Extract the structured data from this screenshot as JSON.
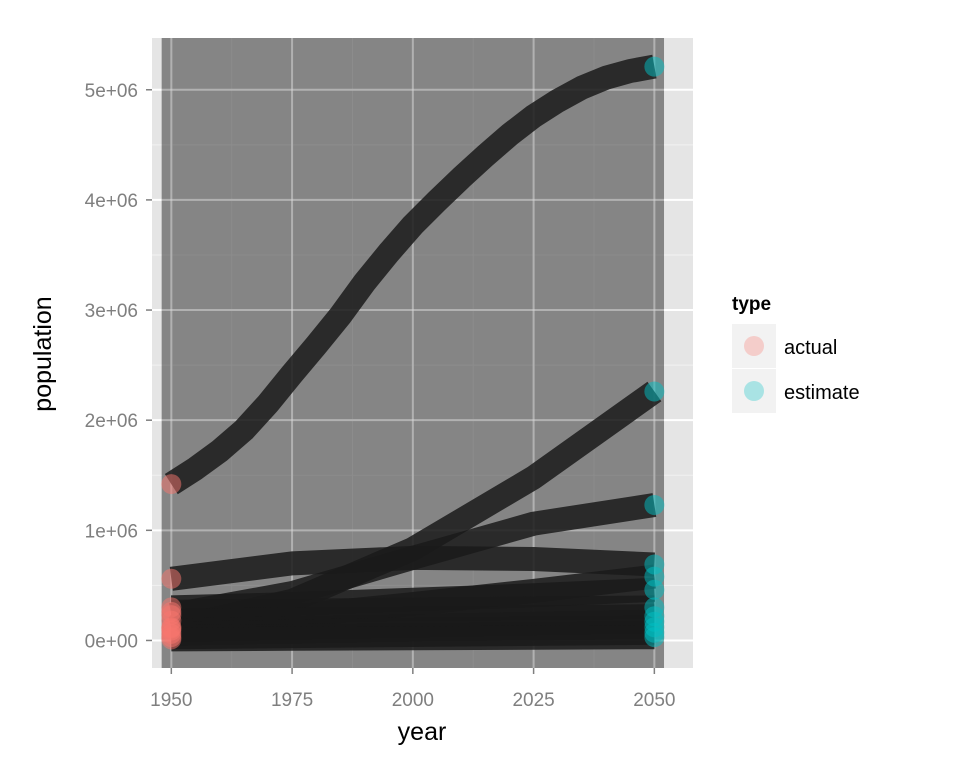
{
  "chart_data": {
    "type": "line",
    "xlabel": "year",
    "ylabel": "population",
    "xlim": [
      1946,
      2058
    ],
    "ylim": [
      -250000,
      5470000
    ],
    "x_ticks": [
      {
        "value": 1950,
        "label": "1950"
      },
      {
        "value": 1975,
        "label": "1975"
      },
      {
        "value": 2000,
        "label": "2000"
      },
      {
        "value": 2025,
        "label": "2025"
      },
      {
        "value": 2050,
        "label": "2050"
      }
    ],
    "y_ticks": [
      {
        "value": 0,
        "label": "0e+00"
      },
      {
        "value": 1000000,
        "label": "1e+06"
      },
      {
        "value": 2000000,
        "label": "2e+06"
      },
      {
        "value": 3000000,
        "label": "3e+06"
      },
      {
        "value": 4000000,
        "label": "4e+06"
      },
      {
        "value": 5000000,
        "label": "5e+06"
      }
    ],
    "shaded_region": {
      "x": [
        1948,
        2052
      ]
    },
    "legend": {
      "title": "type",
      "placement": "right",
      "items": [
        {
          "label": "actual",
          "color": "#F8766D"
        },
        {
          "label": "estimate",
          "color": "#00BFC4"
        }
      ]
    },
    "series": [
      {
        "x": [
          1950,
          1955,
          1960,
          1965,
          1970,
          1975,
          1980,
          1985,
          1990,
          1995,
          2000,
          2005,
          2010,
          2015,
          2020,
          2025,
          2030,
          2035,
          2040,
          2045,
          2050
        ],
        "y": [
          1420000,
          1560000,
          1720000,
          1910000,
          2150000,
          2420000,
          2680000,
          2950000,
          3250000,
          3520000,
          3770000,
          3990000,
          4200000,
          4400000,
          4590000,
          4760000,
          4900000,
          5020000,
          5110000,
          5170000,
          5210000
        ]
      },
      {
        "x": [
          1950,
          1975,
          2000,
          2025,
          2050
        ],
        "y": [
          110000,
          360000,
          830000,
          1480000,
          2260000
        ]
      },
      {
        "x": [
          1950,
          1975,
          2000,
          2025,
          2050
        ],
        "y": [
          230000,
          430000,
          750000,
          1060000,
          1230000
        ]
      },
      {
        "x": [
          1950,
          1975,
          2000,
          2025,
          2050
        ],
        "y": [
          560000,
          700000,
          750000,
          740000,
          690000
        ]
      },
      {
        "x": [
          1950,
          1975,
          2000,
          2025,
          2050
        ],
        "y": [
          120000,
          220000,
          330000,
          450000,
          580000
        ]
      },
      {
        "x": [
          1950,
          1975,
          2000,
          2025,
          2050
        ],
        "y": [
          300000,
          330000,
          370000,
          410000,
          460000
        ]
      },
      {
        "x": [
          1950,
          1975,
          2000,
          2025,
          2050
        ],
        "y": [
          260000,
          270000,
          280000,
          290000,
          300000
        ]
      },
      {
        "x": [
          1950,
          1975,
          2000,
          2025,
          2050
        ],
        "y": [
          180000,
          190000,
          200000,
          210000,
          220000
        ]
      },
      {
        "x": [
          1950,
          1975,
          2000,
          2025,
          2050
        ],
        "y": [
          90000,
          110000,
          130000,
          150000,
          170000
        ]
      },
      {
        "x": [
          1950,
          1975,
          2000,
          2025,
          2050
        ],
        "y": [
          60000,
          80000,
          100000,
          110000,
          120000
        ]
      },
      {
        "x": [
          1950,
          1975,
          2000,
          2025,
          2050
        ],
        "y": [
          30000,
          40000,
          50000,
          60000,
          70000
        ]
      },
      {
        "x": [
          1950,
          1975,
          2000,
          2025,
          2050
        ],
        "y": [
          10000,
          15000,
          20000,
          25000,
          30000
        ]
      }
    ]
  }
}
